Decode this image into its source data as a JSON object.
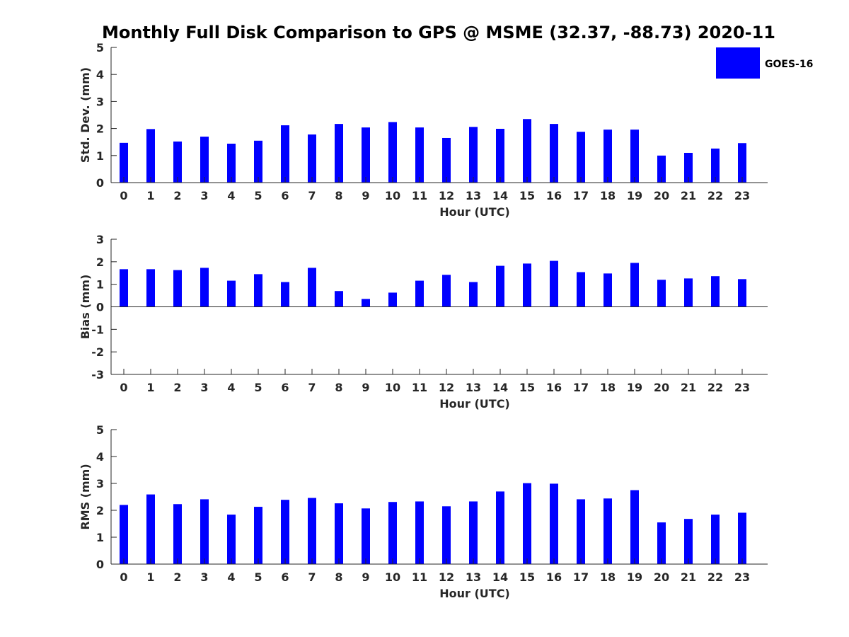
{
  "chart_data": {
    "type": "bar",
    "title": "Monthly Full Disk Comparison to GPS @ MSME (32.37, -88.73) 2020-11",
    "legend": {
      "label": "GOES-16",
      "color": "#0000ff",
      "placement": "top-right"
    },
    "colors": {
      "bar": "#0000ff",
      "axis": "#262626",
      "background": "#ffffff"
    },
    "panels": [
      {
        "type": "bar",
        "xlabel": "Hour (UTC)",
        "ylabel": "Std. Dev. (mm)",
        "ylim": [
          0,
          5
        ],
        "yticks": [
          0,
          1,
          2,
          3,
          4,
          5
        ],
        "categories": [
          "0",
          "1",
          "2",
          "3",
          "4",
          "5",
          "6",
          "7",
          "8",
          "9",
          "10",
          "11",
          "12",
          "13",
          "14",
          "15",
          "16",
          "17",
          "18",
          "19",
          "20",
          "21",
          "22",
          "23"
        ],
        "series": [
          {
            "name": "GOES-16",
            "values": [
              1.47,
              1.98,
              1.52,
              1.7,
              1.44,
              1.55,
              2.12,
              1.78,
              2.17,
              2.04,
              2.24,
              2.04,
              1.65,
              2.06,
              1.99,
              2.35,
              2.17,
              1.88,
              1.96,
              1.96,
              1.0,
              1.1,
              1.26,
              1.46
            ]
          }
        ],
        "zero_line": false
      },
      {
        "type": "bar",
        "xlabel": "Hour (UTC)",
        "ylabel": "Bias (mm)",
        "ylim": [
          -3,
          3
        ],
        "yticks": [
          -3,
          -2,
          -1,
          0,
          1,
          2,
          3
        ],
        "categories": [
          "0",
          "1",
          "2",
          "3",
          "4",
          "5",
          "6",
          "7",
          "8",
          "9",
          "10",
          "11",
          "12",
          "13",
          "14",
          "15",
          "16",
          "17",
          "18",
          "19",
          "20",
          "21",
          "22",
          "23"
        ],
        "series": [
          {
            "name": "GOES-16",
            "values": [
              1.67,
              1.67,
              1.63,
              1.73,
              1.16,
              1.45,
              1.1,
              1.73,
              0.7,
              0.35,
              0.63,
              1.16,
              1.42,
              1.1,
              1.82,
              1.92,
              2.04,
              1.54,
              1.48,
              1.95,
              1.2,
              1.26,
              1.36,
              1.23
            ]
          }
        ],
        "zero_line": true
      },
      {
        "type": "bar",
        "xlabel": "Hour (UTC)",
        "ylabel": "RMS (mm)",
        "ylim": [
          0,
          5
        ],
        "yticks": [
          0,
          1,
          2,
          3,
          4,
          5
        ],
        "categories": [
          "0",
          "1",
          "2",
          "3",
          "4",
          "5",
          "6",
          "7",
          "8",
          "9",
          "10",
          "11",
          "12",
          "13",
          "14",
          "15",
          "16",
          "17",
          "18",
          "19",
          "20",
          "21",
          "22",
          "23"
        ],
        "series": [
          {
            "name": "GOES-16",
            "values": [
              2.2,
              2.59,
              2.23,
              2.41,
              1.84,
              2.13,
              2.39,
              2.46,
              2.26,
              2.07,
              2.31,
              2.33,
              2.15,
              2.33,
              2.7,
              3.01,
              2.99,
              2.41,
              2.44,
              2.75,
              1.55,
              1.68,
              1.84,
              1.91
            ]
          }
        ],
        "zero_line": false
      }
    ]
  }
}
